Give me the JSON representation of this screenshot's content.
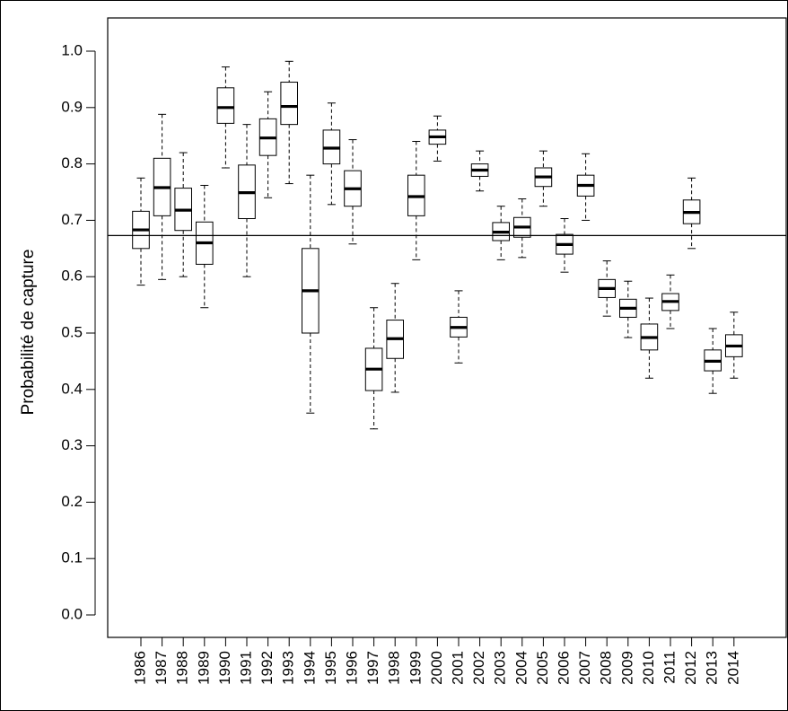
{
  "chart_data": {
    "type": "boxplot",
    "title": "",
    "xlabel": "",
    "ylabel": "Probabilité de capture",
    "ylim": [
      0.0,
      1.0
    ],
    "yticks": [
      "0.0",
      "0.1",
      "0.2",
      "0.3",
      "0.4",
      "0.5",
      "0.6",
      "0.7",
      "0.8",
      "0.9",
      "1.0"
    ],
    "reference_line": 0.673,
    "grid": false,
    "categories": [
      "1986",
      "1987",
      "1988",
      "1989",
      "1990",
      "1991",
      "1992",
      "1993",
      "1994",
      "1995",
      "1996",
      "1997",
      "1998",
      "1999",
      "2000",
      "2001",
      "2002",
      "2003",
      "2004",
      "2005",
      "2006",
      "2007",
      "2008",
      "2009",
      "2010",
      "2011",
      "2012",
      "2013",
      "2014"
    ],
    "boxes": [
      {
        "min": 0.585,
        "q1": 0.65,
        "median": 0.683,
        "q3": 0.716,
        "max": 0.775
      },
      {
        "min": 0.595,
        "q1": 0.708,
        "median": 0.758,
        "q3": 0.81,
        "max": 0.888
      },
      {
        "min": 0.6,
        "q1": 0.682,
        "median": 0.718,
        "q3": 0.757,
        "max": 0.82
      },
      {
        "min": 0.545,
        "q1": 0.622,
        "median": 0.66,
        "q3": 0.697,
        "max": 0.762
      },
      {
        "min": 0.793,
        "q1": 0.872,
        "median": 0.9,
        "q3": 0.935,
        "max": 0.972
      },
      {
        "min": 0.6,
        "q1": 0.703,
        "median": 0.749,
        "q3": 0.798,
        "max": 0.87
      },
      {
        "min": 0.74,
        "q1": 0.815,
        "median": 0.846,
        "q3": 0.88,
        "max": 0.928
      },
      {
        "min": 0.765,
        "q1": 0.87,
        "median": 0.902,
        "q3": 0.945,
        "max": 0.982
      },
      {
        "min": 0.358,
        "q1": 0.5,
        "median": 0.575,
        "q3": 0.65,
        "max": 0.78
      },
      {
        "min": 0.728,
        "q1": 0.8,
        "median": 0.828,
        "q3": 0.86,
        "max": 0.908
      },
      {
        "min": 0.658,
        "q1": 0.725,
        "median": 0.756,
        "q3": 0.788,
        "max": 0.843
      },
      {
        "min": 0.33,
        "q1": 0.398,
        "median": 0.436,
        "q3": 0.473,
        "max": 0.545
      },
      {
        "min": 0.395,
        "q1": 0.455,
        "median": 0.49,
        "q3": 0.523,
        "max": 0.588
      },
      {
        "min": 0.63,
        "q1": 0.708,
        "median": 0.742,
        "q3": 0.78,
        "max": 0.84
      },
      {
        "min": 0.805,
        "q1": 0.835,
        "median": 0.848,
        "q3": 0.86,
        "max": 0.885
      },
      {
        "min": 0.447,
        "q1": 0.493,
        "median": 0.51,
        "q3": 0.528,
        "max": 0.575
      },
      {
        "min": 0.752,
        "q1": 0.778,
        "median": 0.789,
        "q3": 0.8,
        "max": 0.823
      },
      {
        "min": 0.63,
        "q1": 0.664,
        "median": 0.679,
        "q3": 0.696,
        "max": 0.725
      },
      {
        "min": 0.634,
        "q1": 0.67,
        "median": 0.688,
        "q3": 0.705,
        "max": 0.738
      },
      {
        "min": 0.725,
        "q1": 0.76,
        "median": 0.777,
        "q3": 0.793,
        "max": 0.823
      },
      {
        "min": 0.608,
        "q1": 0.64,
        "median": 0.657,
        "q3": 0.675,
        "max": 0.703
      },
      {
        "min": 0.7,
        "q1": 0.743,
        "median": 0.762,
        "q3": 0.78,
        "max": 0.818
      },
      {
        "min": 0.53,
        "q1": 0.563,
        "median": 0.579,
        "q3": 0.595,
        "max": 0.628
      },
      {
        "min": 0.492,
        "q1": 0.528,
        "median": 0.544,
        "q3": 0.56,
        "max": 0.592
      },
      {
        "min": 0.42,
        "q1": 0.47,
        "median": 0.492,
        "q3": 0.516,
        "max": 0.562
      },
      {
        "min": 0.508,
        "q1": 0.54,
        "median": 0.556,
        "q3": 0.57,
        "max": 0.603
      },
      {
        "min": 0.65,
        "q1": 0.694,
        "median": 0.714,
        "q3": 0.736,
        "max": 0.775
      },
      {
        "min": 0.393,
        "q1": 0.433,
        "median": 0.45,
        "q3": 0.47,
        "max": 0.508
      },
      {
        "min": 0.42,
        "q1": 0.458,
        "median": 0.477,
        "q3": 0.497,
        "max": 0.537
      }
    ]
  }
}
